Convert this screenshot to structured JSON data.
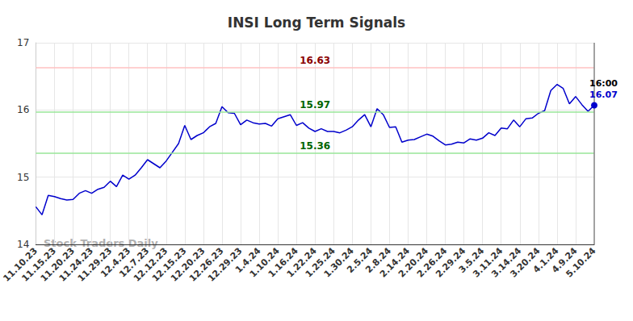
{
  "chart_data": {
    "type": "line",
    "title": "INSI Long Term Signals",
    "categories": [
      "11.10.23",
      null,
      null,
      "11.15.23",
      null,
      null,
      "11.20.23",
      null,
      null,
      "11.24.23",
      null,
      null,
      "11.29.23",
      null,
      null,
      "12.4.23",
      null,
      null,
      "12.7.23",
      null,
      null,
      "12.12.23",
      null,
      null,
      "12.15.23",
      null,
      null,
      "12.20.23",
      null,
      null,
      "12.26.23",
      null,
      null,
      "12.29.23",
      null,
      null,
      "1.4.24",
      null,
      null,
      "1.10.24",
      null,
      null,
      "1.16.24",
      null,
      null,
      "1.22.24",
      null,
      null,
      "1.25.24",
      null,
      null,
      "1.30.24",
      null,
      null,
      "2.5.24",
      null,
      null,
      "2.8.24",
      null,
      null,
      "2.14.24",
      null,
      null,
      "2.20.24",
      null,
      null,
      "2.26.24",
      null,
      null,
      "2.29.24",
      null,
      null,
      "3.5.24",
      null,
      null,
      "3.11.24",
      null,
      null,
      "3.14.24",
      null,
      null,
      "3.20.24",
      null,
      null,
      "4.1.24",
      null,
      null,
      "4.9.24",
      null,
      null,
      "5.10.24"
    ],
    "values": [
      14.56,
      14.44,
      14.73,
      14.71,
      14.68,
      14.66,
      14.67,
      14.76,
      14.8,
      14.76,
      14.82,
      14.85,
      14.94,
      14.86,
      15.03,
      14.97,
      15.03,
      15.14,
      15.26,
      15.2,
      15.14,
      15.24,
      15.37,
      15.5,
      15.77,
      15.56,
      15.62,
      15.66,
      15.75,
      15.8,
      16.05,
      15.96,
      15.95,
      15.78,
      15.85,
      15.81,
      15.79,
      15.8,
      15.76,
      15.87,
      15.9,
      15.93,
      15.77,
      15.81,
      15.73,
      15.68,
      15.72,
      15.68,
      15.68,
      15.66,
      15.7,
      15.75,
      15.85,
      15.93,
      15.75,
      16.02,
      15.93,
      15.74,
      15.75,
      15.52,
      15.55,
      15.56,
      15.6,
      15.64,
      15.61,
      15.54,
      15.48,
      15.49,
      15.52,
      15.51,
      15.57,
      15.55,
      15.58,
      15.66,
      15.62,
      15.73,
      15.72,
      15.85,
      15.75,
      15.87,
      15.88,
      15.95,
      15.99,
      16.29,
      16.38,
      16.32,
      16.09,
      16.2,
      16.08,
      15.98,
      16.07
    ],
    "color": "#0000cc",
    "ylim": [
      14,
      17
    ],
    "yticks": [
      14,
      15,
      16,
      17
    ],
    "grid": true,
    "annotations": {
      "levels": [
        {
          "value": 16.63,
          "color": "#8b0000"
        },
        {
          "value": 15.97,
          "color": "#006400"
        },
        {
          "value": 15.36,
          "color": "#006400"
        }
      ],
      "last_point": {
        "time": "16:00",
        "value": 16.07
      },
      "watermark": "Stock Traders Daily"
    }
  }
}
